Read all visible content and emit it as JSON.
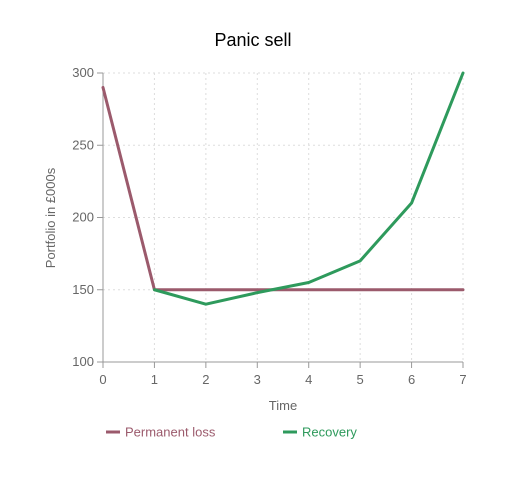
{
  "chart_data": {
    "type": "line",
    "title": "Panic sell",
    "xlabel": "Time",
    "ylabel": "Portfolio in £000s",
    "x": [
      0,
      1,
      2,
      3,
      4,
      5,
      6,
      7
    ],
    "xlim": [
      0,
      7
    ],
    "ylim": [
      100,
      300
    ],
    "yticks": [
      100,
      150,
      200,
      250,
      300
    ],
    "grid": true,
    "legend_position": "bottom",
    "series": [
      {
        "name": "Permanent loss",
        "color": "#9b5a6c",
        "points": [
          [
            0,
            290
          ],
          [
            1,
            150
          ],
          [
            2,
            150
          ],
          [
            3,
            150
          ],
          [
            4,
            150
          ],
          [
            5,
            150
          ],
          [
            6,
            150
          ],
          [
            7,
            150
          ]
        ]
      },
      {
        "name": "Recovery",
        "color": "#2e9a5c",
        "points": [
          [
            1,
            150
          ],
          [
            2,
            140
          ],
          [
            3,
            148
          ],
          [
            4,
            155
          ],
          [
            5,
            170
          ],
          [
            6,
            210
          ],
          [
            7,
            300
          ]
        ]
      }
    ]
  }
}
